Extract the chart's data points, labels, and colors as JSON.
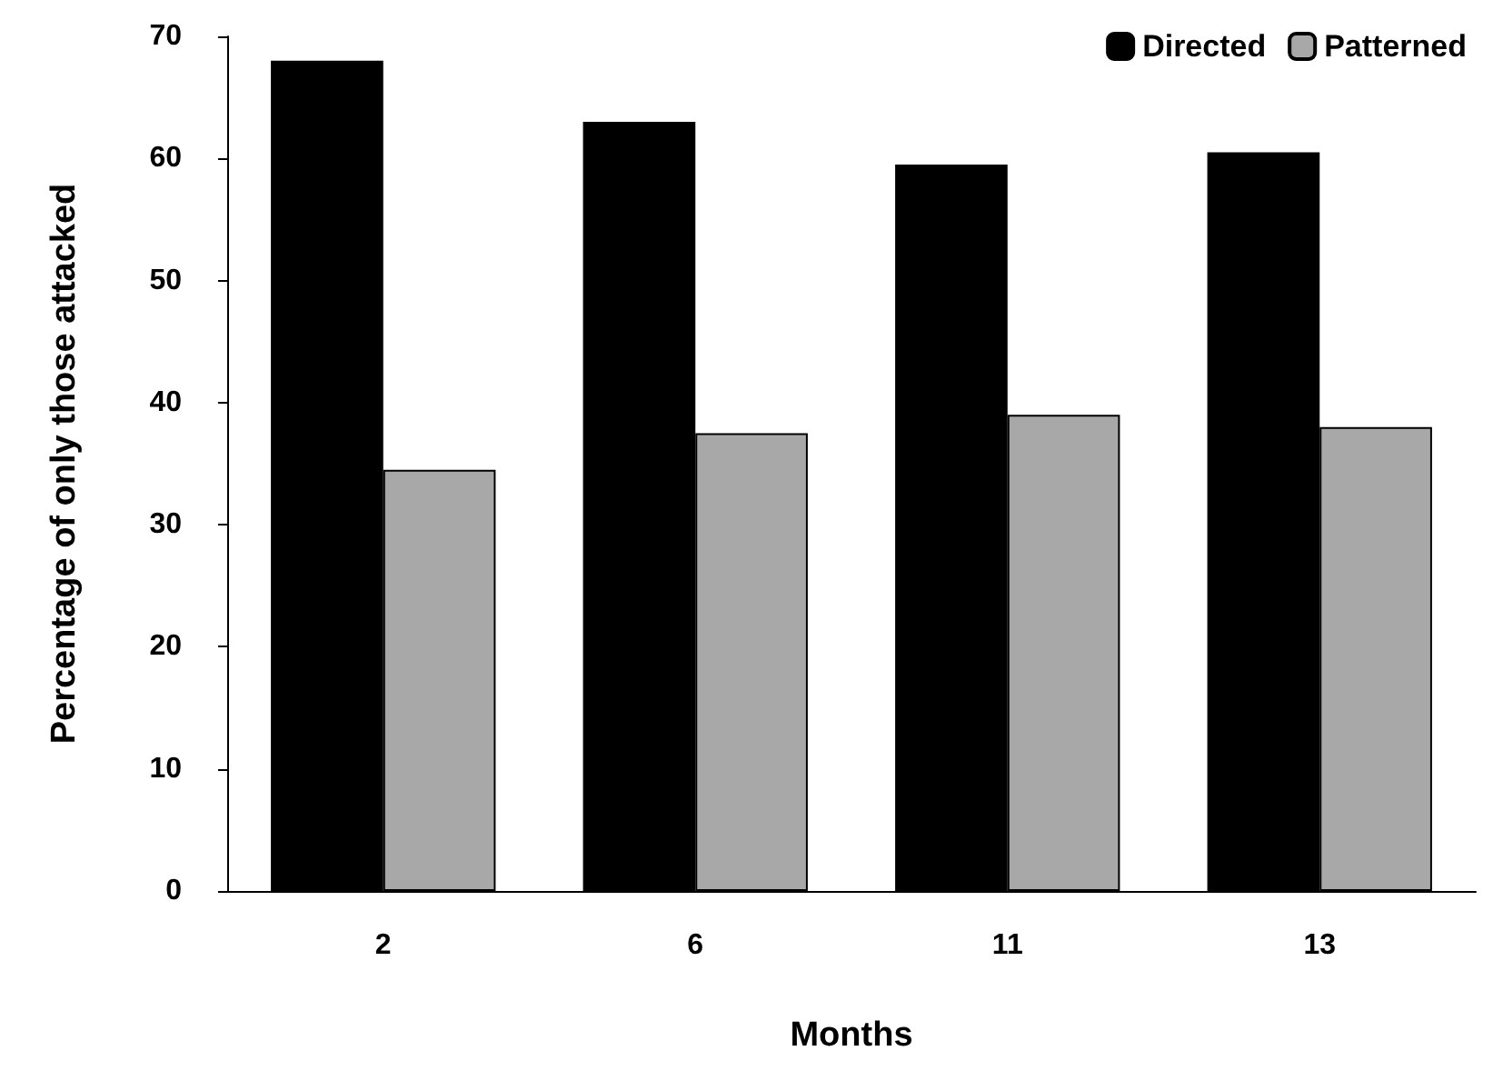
{
  "chart_data": {
    "type": "bar",
    "xlabel": "Months",
    "ylabel": "Percentage of only those attacked",
    "categories": [
      "2",
      "6",
      "11",
      "13"
    ],
    "series": [
      {
        "name": "Directed",
        "color": "#000000",
        "values": [
          68,
          63,
          59.5,
          60.5
        ]
      },
      {
        "name": "Patterned",
        "color": "#a8a8a8",
        "values": [
          34.5,
          37.5,
          39,
          38
        ]
      }
    ],
    "ylim": [
      0,
      70
    ],
    "yticks": [
      0,
      10,
      20,
      30,
      40,
      50,
      60,
      70
    ],
    "grid": false,
    "legend": "top right"
  }
}
